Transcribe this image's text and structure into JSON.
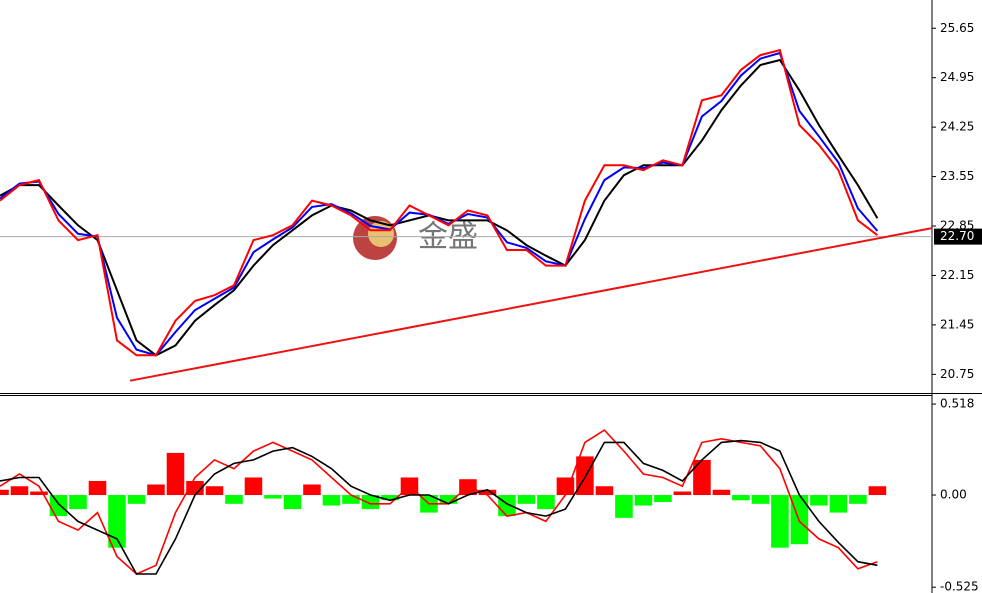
{
  "chart_data": [
    {
      "type": "line",
      "watermark": "金盛",
      "x": [
        0,
        1,
        2,
        3,
        4,
        5,
        6,
        7,
        8,
        9,
        10,
        11,
        12,
        13,
        14,
        15,
        16,
        17,
        18,
        19,
        20,
        21,
        22,
        23,
        24,
        25,
        26,
        27,
        28,
        29,
        30,
        31,
        32,
        33,
        34,
        35,
        36,
        37,
        38,
        39,
        40,
        41,
        42,
        43,
        44,
        45
      ],
      "xlim": [
        0,
        47.8
      ],
      "ylim": [
        20.5,
        26.05
      ],
      "yticks": [
        20.75,
        21.45,
        22.15,
        22.85,
        23.55,
        24.25,
        24.95,
        25.65
      ],
      "current": {
        "value": 22.7,
        "label": "22.70"
      },
      "series": [
        {
          "color": "#000000",
          "values": [
            23.28,
            23.43,
            23.43,
            23.14,
            22.86,
            22.65,
            21.94,
            21.23,
            21.02,
            21.16,
            21.51,
            21.73,
            21.94,
            22.29,
            22.58,
            22.79,
            23.0,
            23.14,
            23.07,
            22.93,
            22.86,
            22.93,
            23.0,
            22.93,
            22.93,
            22.93,
            22.79,
            22.58,
            22.43,
            22.29,
            22.65,
            23.21,
            23.57,
            23.71,
            23.71,
            23.71,
            24.06,
            24.49,
            24.84,
            25.13,
            25.2,
            24.77,
            24.28,
            23.85,
            23.43,
            22.96
          ]
        },
        {
          "color": "#0000ff",
          "values": [
            23.24,
            23.45,
            23.48,
            23.02,
            22.74,
            22.7,
            21.55,
            21.1,
            21.02,
            21.35,
            21.66,
            21.82,
            21.98,
            22.48,
            22.66,
            22.83,
            23.12,
            23.16,
            23.03,
            22.85,
            22.8,
            23.04,
            23.01,
            22.88,
            23.02,
            22.97,
            22.62,
            22.54,
            22.35,
            22.29,
            22.95,
            23.5,
            23.68,
            23.67,
            23.75,
            23.71,
            24.4,
            24.62,
            24.98,
            25.22,
            25.3,
            24.48,
            24.12,
            23.75,
            23.1,
            22.78
          ]
        },
        {
          "color": "#ff0000",
          "values": [
            23.21,
            23.43,
            23.5,
            22.93,
            22.65,
            22.72,
            21.23,
            21.02,
            21.02,
            21.51,
            21.79,
            21.87,
            22.01,
            22.65,
            22.72,
            22.86,
            23.21,
            23.14,
            23.0,
            22.79,
            22.79,
            23.14,
            23.0,
            22.86,
            23.07,
            23.0,
            22.51,
            22.51,
            22.29,
            22.29,
            23.21,
            23.71,
            23.71,
            23.64,
            23.78,
            23.71,
            24.63,
            24.7,
            25.06,
            25.27,
            25.34,
            24.28,
            24.0,
            23.64,
            22.93,
            22.72
          ]
        }
      ],
      "trendline": {
        "color": "#ee1111",
        "x": [
          6.67,
          47.8
        ],
        "values": [
          20.66,
          22.82
        ]
      }
    },
    {
      "type": "bar",
      "x": [
        0,
        1,
        2,
        3,
        4,
        5,
        6,
        7,
        8,
        9,
        10,
        11,
        12,
        13,
        14,
        15,
        16,
        17,
        18,
        19,
        20,
        21,
        22,
        23,
        24,
        25,
        26,
        27,
        28,
        29,
        30,
        31,
        32,
        33,
        34,
        35,
        36,
        37,
        38,
        39,
        40,
        41,
        42,
        43,
        44,
        45
      ],
      "xlim": [
        0,
        47.8
      ],
      "ylim": [
        -0.558,
        0.564
      ],
      "yticks": [
        {
          "value": -0.525,
          "label": "-0.525"
        },
        {
          "value": 0,
          "label": "0.00"
        },
        0.518
      ],
      "positive_color": "#ff0000",
      "negative_color": "#00ff00",
      "values": [
        0.03,
        0.05,
        0.02,
        -0.12,
        -0.08,
        0.08,
        -0.3,
        -0.05,
        0.06,
        0.24,
        0.08,
        0.05,
        -0.05,
        0.1,
        -0.02,
        -0.08,
        0.06,
        -0.06,
        -0.05,
        -0.08,
        -0.03,
        0.1,
        -0.1,
        -0.05,
        0.09,
        0.03,
        -0.12,
        -0.05,
        -0.08,
        0.1,
        0.22,
        0.05,
        -0.13,
        -0.06,
        -0.04,
        0.02,
        0.2,
        0.03,
        -0.03,
        -0.05,
        -0.3,
        -0.28,
        -0.06,
        -0.1,
        -0.05,
        0.05
      ],
      "series": [
        {
          "color": "#ff0000",
          "values": [
            0.05,
            0.12,
            0.05,
            -0.15,
            -0.2,
            -0.1,
            -0.35,
            -0.45,
            -0.4,
            -0.1,
            0.1,
            0.2,
            0.15,
            0.25,
            0.3,
            0.25,
            0.2,
            0.1,
            0.0,
            -0.05,
            -0.05,
            0.05,
            -0.05,
            -0.05,
            0.05,
            0.0,
            -0.12,
            -0.1,
            -0.15,
            0.0,
            0.3,
            0.37,
            0.25,
            0.12,
            0.1,
            0.05,
            0.3,
            0.32,
            0.3,
            0.28,
            0.15,
            -0.15,
            -0.25,
            -0.3,
            -0.42,
            -0.38
          ]
        },
        {
          "color": "#000000",
          "values": [
            0.08,
            0.1,
            0.1,
            -0.05,
            -0.15,
            -0.2,
            -0.25,
            -0.45,
            -0.45,
            -0.25,
            0.0,
            0.12,
            0.18,
            0.2,
            0.25,
            0.27,
            0.22,
            0.15,
            0.05,
            0.0,
            -0.03,
            0.0,
            0.0,
            -0.05,
            0.0,
            0.03,
            -0.05,
            -0.1,
            -0.12,
            -0.08,
            0.1,
            0.3,
            0.3,
            0.18,
            0.14,
            0.08,
            0.2,
            0.3,
            0.31,
            0.3,
            0.25,
            0.0,
            -0.15,
            -0.27,
            -0.38,
            -0.4
          ]
        }
      ]
    }
  ]
}
